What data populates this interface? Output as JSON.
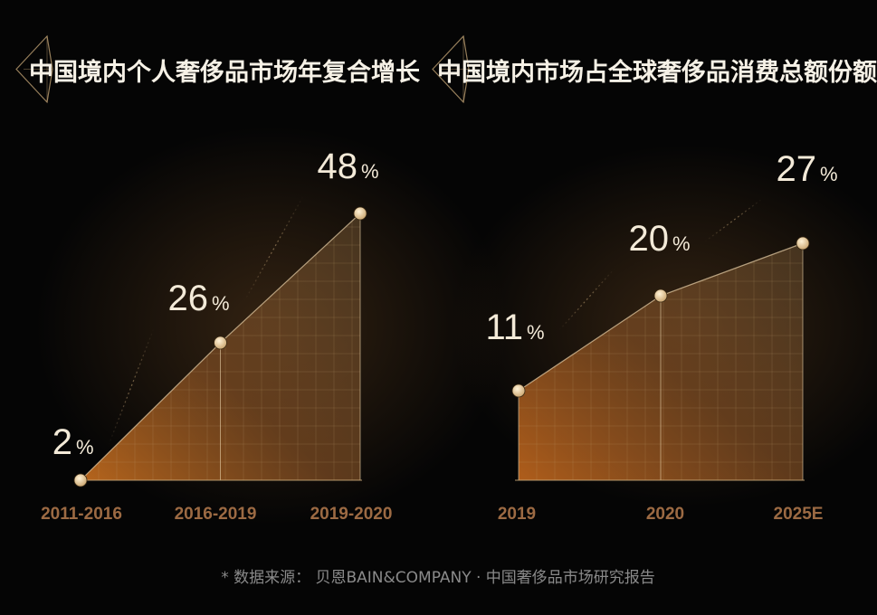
{
  "colors": {
    "background": "#050505",
    "gold": "#c8a878",
    "gold_light": "#e9d2aa",
    "orange": "#b76a2a",
    "axis_label": "#9c6a43",
    "value_text": "#f3ead8",
    "source_text": "#8a8a8a",
    "title_text": "#f6f1e6"
  },
  "chart_data": [
    {
      "type": "area",
      "title": "中国境内个人奢侈品市场年复合增长",
      "categories": [
        "2011-2016",
        "2016-2019",
        "2019-2020"
      ],
      "values": [
        2,
        26,
        48
      ],
      "value_labels": [
        "2",
        "26",
        "48"
      ],
      "unit": "%",
      "xlabel": "",
      "ylabel": "",
      "ylim": [
        0,
        48
      ],
      "grid": true,
      "legend": "none"
    },
    {
      "type": "area",
      "title": "中国境内市场占全球奢侈品消费总额份额",
      "categories": [
        "2019",
        "2020",
        "2025E"
      ],
      "values": [
        11,
        20,
        27
      ],
      "value_labels": [
        "11",
        "20",
        "27"
      ],
      "unit": "%",
      "xlabel": "",
      "ylabel": "",
      "ylim": [
        0,
        30
      ],
      "grid": true,
      "legend": "none"
    }
  ],
  "footer": {
    "source": "* 数据来源：  贝恩BAIN&COMPANY · 中国奢侈品市场研究报告"
  }
}
